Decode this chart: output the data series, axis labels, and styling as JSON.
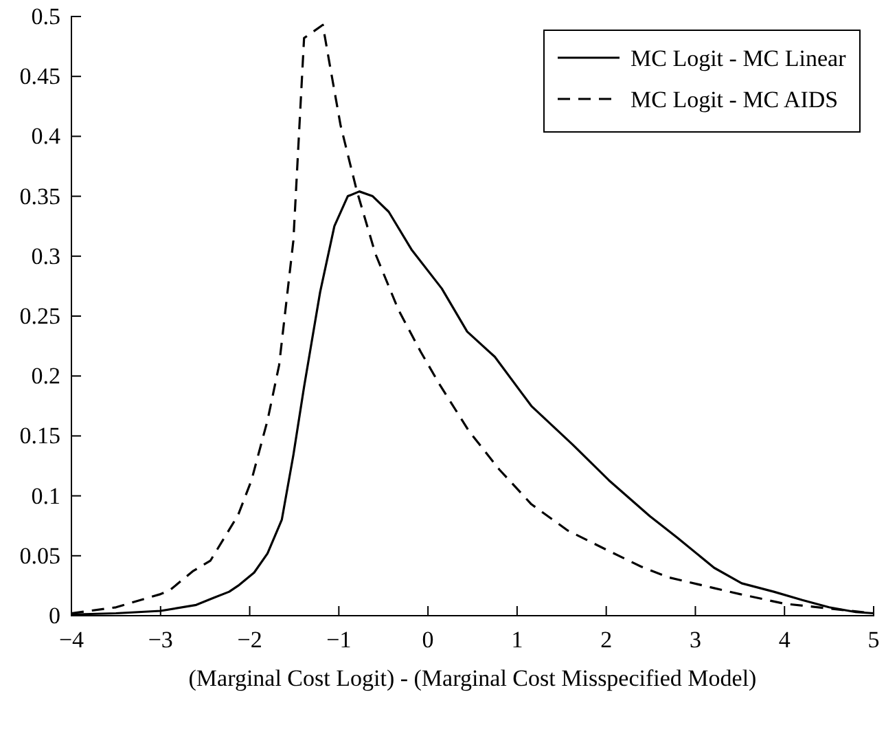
{
  "chart_data": {
    "type": "line",
    "xlabel": "(Marginal Cost Logit) - (Marginal Cost Misspecified Model)",
    "xlim": [
      -4,
      5
    ],
    "xticks": [
      -4,
      -3,
      -2,
      -1,
      0,
      1,
      2,
      3,
      4,
      5
    ],
    "ylim": [
      0,
      0.5
    ],
    "yticks": [
      0,
      0.05,
      0.1,
      0.15,
      0.2,
      0.25,
      0.3,
      0.35,
      0.4,
      0.45,
      0.5
    ],
    "legend": "top right",
    "grid": false,
    "series": [
      {
        "name": "MC Logit - MC Linear",
        "color": "#000000",
        "line_style": "solid",
        "x": [
          -4,
          -3.5,
          -3,
          -2.6,
          -2.4,
          -2.23,
          -2.13,
          -1.95,
          -1.8,
          -1.64,
          -1.51,
          -1.39,
          -1.21,
          -1.05,
          -0.9,
          -0.77,
          -0.62,
          -0.44,
          -0.18,
          0.155,
          0.44,
          0.75,
          1.16,
          1.62,
          2.03,
          2.49,
          2.8,
          3.21,
          3.52,
          3.88,
          4.2,
          4.5,
          4.8,
          5
        ],
        "values": [
          0.001,
          0.002,
          0.004,
          0.009,
          0.015,
          0.02,
          0.025,
          0.036,
          0.052,
          0.08,
          0.134,
          0.191,
          0.27,
          0.325,
          0.35,
          0.354,
          0.35,
          0.337,
          0.305,
          0.273,
          0.237,
          0.216,
          0.175,
          0.143,
          0.113,
          0.083,
          0.065,
          0.04,
          0.027,
          0.02,
          0.013,
          0.007,
          0.003,
          0.002
        ]
      },
      {
        "name": "MC Logit - MC AIDS",
        "color": "#000000",
        "line_style": "dashed",
        "x": [
          -4,
          -3.5,
          -3,
          -2.9,
          -2.64,
          -2.44,
          -2.13,
          -1.98,
          -1.8,
          -1.67,
          -1.51,
          -1.39,
          -1.18,
          -1.1,
          -0.98,
          -0.8,
          -0.59,
          -0.33,
          -0.08,
          0.13,
          0.46,
          0.8,
          1.16,
          1.57,
          2.03,
          2.39,
          2.7,
          3.21,
          3.5,
          4,
          4.5,
          5
        ],
        "values": [
          0.002,
          0.007,
          0.018,
          0.021,
          0.037,
          0.046,
          0.084,
          0.113,
          0.163,
          0.209,
          0.313,
          0.482,
          0.493,
          0.459,
          0.409,
          0.355,
          0.302,
          0.255,
          0.22,
          0.193,
          0.154,
          0.122,
          0.093,
          0.071,
          0.054,
          0.041,
          0.032,
          0.023,
          0.018,
          0.01,
          0.006,
          0.002
        ]
      }
    ]
  }
}
